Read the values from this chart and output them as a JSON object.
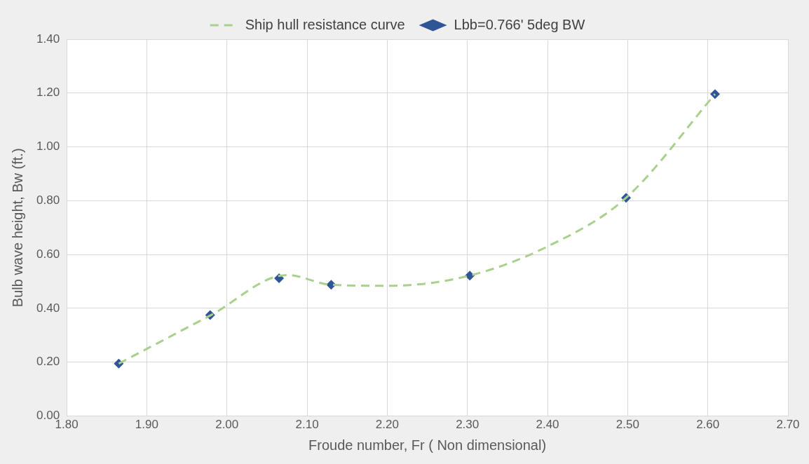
{
  "chart_data": {
    "type": "scatter",
    "xlabel": "Froude number, Fr ( Non dimensional)",
    "ylabel": "Bulb wave height, Bw (ft.)",
    "xlim": [
      1.8,
      2.7
    ],
    "xticks": [
      {
        "value": 1.8,
        "label": "1.80"
      },
      {
        "value": 1.9,
        "label": "1.90"
      },
      {
        "value": 2.0,
        "label": "2.00"
      },
      {
        "value": 2.1,
        "label": "2.10"
      },
      {
        "value": 2.2,
        "label": "2.20"
      },
      {
        "value": 2.3,
        "label": "2.30"
      },
      {
        "value": 2.4,
        "label": "2.40"
      },
      {
        "value": 2.5,
        "label": "2.50"
      },
      {
        "value": 2.6,
        "label": "2.60"
      },
      {
        "value": 2.7,
        "label": "2.70"
      }
    ],
    "ylim": [
      0,
      1.4
    ],
    "yticks": [
      {
        "value": 0,
        "label": "0.00"
      },
      {
        "value": 0.2,
        "label": "0.20"
      },
      {
        "value": 0.4,
        "label": "0.40"
      },
      {
        "value": 0.6,
        "label": "0.60"
      },
      {
        "value": 0.8,
        "label": "0.80"
      },
      {
        "value": 1.0,
        "label": "1.00"
      },
      {
        "value": 1.2,
        "label": "1.20"
      },
      {
        "value": 1.4,
        "label": "1.40"
      }
    ],
    "grid": true,
    "legend": "top",
    "series": [
      {
        "name": "Ship hull resistance curve",
        "type": "line",
        "color": "#a9d18e",
        "line_style": "dashed",
        "marker": "none",
        "x": [
          1.865,
          1.98,
          2.075,
          2.13,
          2.2,
          2.303,
          2.4,
          2.498,
          2.609
        ],
        "values": [
          0.195,
          0.375,
          0.524,
          0.488,
          0.484,
          0.522,
          0.63,
          0.811,
          1.196
        ]
      },
      {
        "name": "Lbb=0.766' 5deg BW",
        "type": "scatter",
        "color": "#2f5597",
        "marker": "diamond",
        "x": [
          1.865,
          1.979,
          2.065,
          2.13,
          2.303,
          2.498,
          2.609
        ],
        "values": [
          0.195,
          0.375,
          0.512,
          0.488,
          0.522,
          0.811,
          1.196
        ]
      }
    ]
  }
}
